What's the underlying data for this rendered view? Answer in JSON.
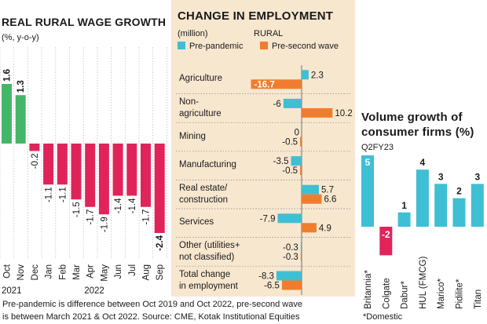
{
  "chart_data": [
    {
      "type": "bar",
      "title": "REAL RURAL WAGE GROWTH",
      "subtitle": "(%, y-o-y)",
      "categories": [
        "Oct",
        "Nov",
        "Dec",
        "Jan",
        "Feb",
        "Mar",
        "Apr",
        "May",
        "Jun",
        "Jul",
        "Aug",
        "Sep"
      ],
      "values": [
        1.6,
        1.3,
        -0.2,
        -1.1,
        -1.1,
        -1.5,
        -1.7,
        -1.9,
        -1.4,
        -1.4,
        -1.7,
        -2.4
      ],
      "value_labels": [
        "1.6",
        "1.3",
        "-0.2",
        "-1.1",
        "-1.1",
        "-1.5",
        "-1.7",
        "-1.9",
        "-1.4",
        "-1.4",
        "-1.7",
        "-2.4"
      ],
      "year_labels": [
        "2021",
        "2022"
      ],
      "ylim": [
        -2.4,
        1.6
      ],
      "colors": {
        "positive": "#43b66a",
        "negative": "#e0245a"
      },
      "grid": "vertical dotted"
    },
    {
      "type": "bar",
      "title": "CHANGE IN EMPLOYMENT",
      "subtitle": "(million)",
      "rural_label": "RURAL",
      "categories": [
        "Agriculture",
        "Non-\nagriculture",
        "Mining",
        "Manufacturing",
        "Real estate/\nconstruction",
        "Services",
        "Other (utilities+\nnot classified)",
        "Total change\nin employment"
      ],
      "series": [
        {
          "name": "Pre-pandemic",
          "color": "#3fbfd3",
          "values": [
            2.3,
            -6,
            0,
            -3.5,
            5.7,
            -7.9,
            -0.3,
            -8.3
          ],
          "labels": [
            "2.3",
            "-6",
            "0",
            "-3.5",
            "5.7",
            "-7.9",
            "-0.3",
            "-8.3"
          ]
        },
        {
          "name": "Pre-second wave",
          "color": "#f07d2e",
          "values": [
            -16.7,
            10.2,
            -0.5,
            -0.5,
            6.6,
            4.9,
            -0.3,
            -6.5
          ],
          "labels": [
            "-16.7",
            "10.2",
            "-0.5",
            "-0.5",
            "6.6",
            "4.9",
            "-0.3",
            "-6.5"
          ]
        }
      ],
      "xlim": [
        -16.7,
        10.2
      ]
    },
    {
      "type": "bar",
      "title": "Volume growth of\nconsumer firms (%)",
      "subtitle": "Q2FY23",
      "categories": [
        "Britannia*",
        "Colgate",
        "Dabur*",
        "HUL (FMCG)",
        "Marico*",
        "Pidilite*",
        "Titan"
      ],
      "values": [
        5,
        -2,
        1,
        4,
        3,
        2,
        3
      ],
      "value_labels": [
        "5",
        "-2",
        "1",
        "4",
        "3",
        "2",
        "3"
      ],
      "colors": {
        "positive": "#3fbfd3",
        "negative": "#e0245a"
      },
      "footnote": "*Domestic"
    }
  ],
  "footnote": {
    "line1": "Pre-pandemic is difference between Oct 2019 and Oct 2022, pre-second wave",
    "line2": "is between March 2021 & Oct 2022. Source: CME, Kotak Institutional Equities"
  }
}
